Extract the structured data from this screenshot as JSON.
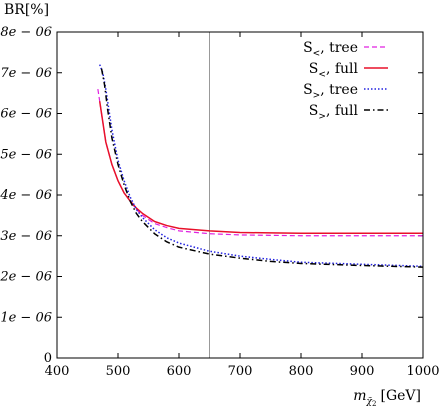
{
  "chart_data": {
    "type": "line",
    "ylabel": "BR[%]",
    "xlabel": {
      "symbol": "m",
      "subscript": "χ̃",
      "subsubscript": "2",
      "unit": "[GeV]"
    },
    "xlim": [
      400,
      1000
    ],
    "ylim": [
      0,
      8e-06
    ],
    "x_ticks": [
      400,
      500,
      600,
      700,
      800,
      900,
      1000
    ],
    "x_tick_labels": [
      "400",
      "500",
      "600",
      "700",
      "800",
      "900",
      "1000"
    ],
    "y_ticks": [
      0,
      1e-06,
      2e-06,
      3e-06,
      4e-06,
      5e-06,
      6e-06,
      7e-06,
      8e-06
    ],
    "y_tick_labels": [
      "0",
      "1e − 06",
      "2e − 06",
      "3e − 06",
      "4e − 06",
      "5e − 06",
      "6e − 06",
      "7e − 06",
      "8e − 06"
    ],
    "vertical_line_x": 650,
    "legend_position": "top-right",
    "series": [
      {
        "name": {
          "base": "S",
          "sub": "<",
          "suffix": ", tree"
        },
        "color": "#e020e0",
        "style": "dashed",
        "x": [
          467,
          470,
          475,
          480,
          490,
          500,
          510,
          520,
          530,
          540,
          560,
          580,
          600,
          650,
          700,
          750,
          800,
          900,
          1000
        ],
        "y": [
          6.6e-06,
          6.3e-06,
          5.8e-06,
          5.3e-06,
          4.75e-06,
          4.35e-06,
          4.05e-06,
          3.85e-06,
          3.65e-06,
          3.5e-06,
          3.3e-06,
          3.2e-06,
          3.12e-06,
          3.05e-06,
          3.02e-06,
          3.01e-06,
          3e-06,
          3e-06,
          3e-06
        ]
      },
      {
        "name": {
          "base": "S",
          "sub": "<",
          "suffix": ", full"
        },
        "color": "#e8102a",
        "style": "solid",
        "x": [
          470,
          475,
          480,
          490,
          500,
          510,
          520,
          530,
          540,
          560,
          580,
          600,
          650,
          700,
          750,
          800,
          900,
          1000
        ],
        "y": [
          6.3e-06,
          5.8e-06,
          5.3e-06,
          4.75e-06,
          4.35e-06,
          4.05e-06,
          3.85e-06,
          3.68e-06,
          3.55e-06,
          3.35e-06,
          3.25e-06,
          3.18e-06,
          3.12e-06,
          3.08e-06,
          3.07e-06,
          3.06e-06,
          3.06e-06,
          3.06e-06
        ]
      },
      {
        "name": {
          "base": "S",
          "sub": ">",
          "suffix": ", tree"
        },
        "color": "#2020e0",
        "style": "dotted",
        "x": [
          470,
          475,
          480,
          490,
          500,
          510,
          520,
          530,
          540,
          560,
          580,
          600,
          650,
          700,
          750,
          800,
          900,
          1000
        ],
        "y": [
          7.2e-06,
          7e-06,
          6.6e-06,
          5.6e-06,
          4.85e-06,
          4.35e-06,
          3.95e-06,
          3.65e-06,
          3.45e-06,
          3.15e-06,
          2.95e-06,
          2.82e-06,
          2.62e-06,
          2.5e-06,
          2.42e-06,
          2.35e-06,
          2.3e-06,
          2.25e-06
        ]
      },
      {
        "name": {
          "base": "S",
          "sub": ">",
          "suffix": ", full"
        },
        "color": "#000000",
        "style": "dashdot",
        "x": [
          473,
          478,
          483,
          490,
          500,
          510,
          520,
          530,
          540,
          560,
          580,
          600,
          650,
          700,
          750,
          800,
          900,
          1000
        ],
        "y": [
          7.1e-06,
          6.7e-06,
          6.1e-06,
          5.4e-06,
          4.75e-06,
          4.25e-06,
          3.85e-06,
          3.55e-06,
          3.35e-06,
          3.05e-06,
          2.85e-06,
          2.72e-06,
          2.55e-06,
          2.45e-06,
          2.37e-06,
          2.32e-06,
          2.27e-06,
          2.23e-06
        ]
      }
    ]
  }
}
